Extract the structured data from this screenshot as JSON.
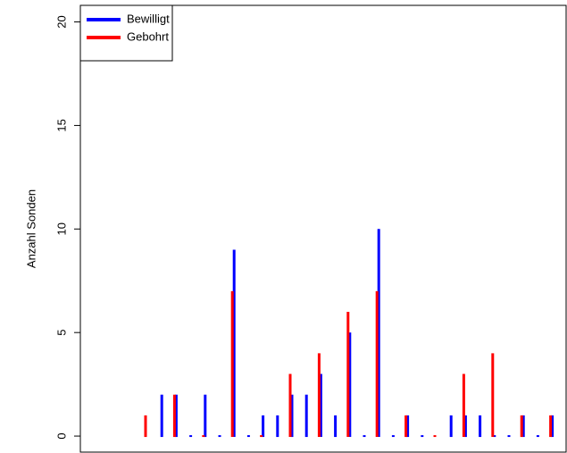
{
  "chart_data": {
    "type": "bar",
    "y_label": "Anzahl Sonden",
    "categories": [
      null,
      null,
      null,
      null,
      null,
      null,
      null,
      null,
      null,
      null,
      null,
      null,
      null,
      null,
      null,
      null,
      null,
      null,
      null,
      null,
      null,
      null,
      null,
      null,
      null,
      null,
      null,
      null,
      null
    ],
    "series": [
      {
        "name": "Bewilligt",
        "color": "#0000ff",
        "values": [
          null,
          2,
          2,
          0,
          2,
          0,
          9,
          0,
          1,
          1,
          2,
          2,
          3,
          1,
          5,
          0,
          10,
          0,
          1,
          0,
          null,
          1,
          1,
          1,
          0,
          0,
          1,
          0,
          1
        ]
      },
      {
        "name": "Gebohrt",
        "color": "#ff0000",
        "values": [
          1,
          null,
          2,
          null,
          0,
          null,
          7,
          null,
          0,
          null,
          3,
          null,
          4,
          null,
          6,
          null,
          7,
          null,
          1,
          null,
          0,
          null,
          3,
          null,
          4,
          null,
          1,
          null,
          1
        ]
      }
    ],
    "ylim": [
      -0.8,
      20.8
    ],
    "yticks": [
      0,
      5,
      10,
      15,
      20
    ],
    "legend": "top-left"
  }
}
